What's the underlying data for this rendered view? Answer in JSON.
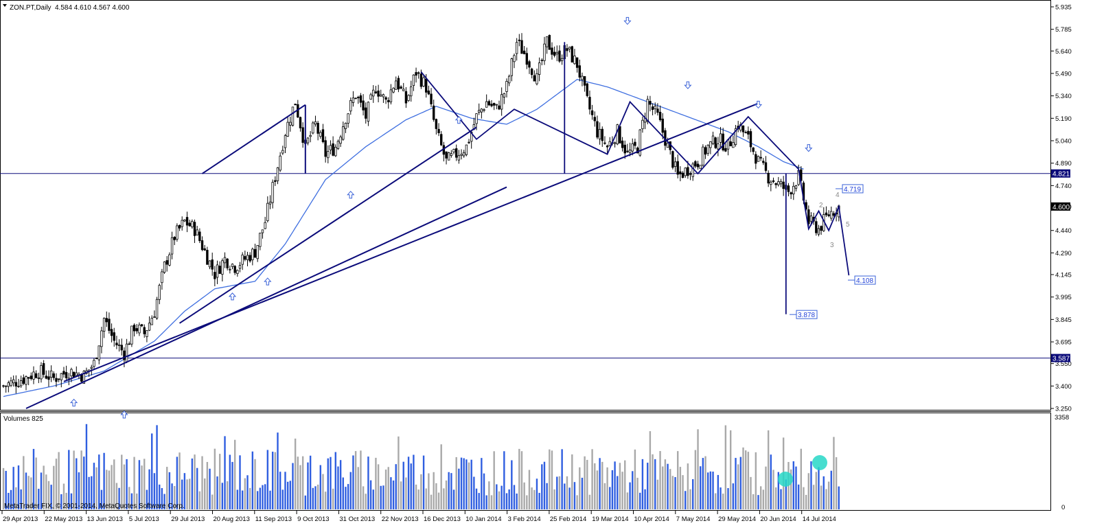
{
  "header": {
    "symbol": "ZON.PT,Daily",
    "ohlc": "4.584 4.610 4.567 4.600"
  },
  "volume_panel": {
    "label": "Volumes 825",
    "max_label": "3358",
    "zero_label": "0"
  },
  "watermark": "MetaTrader FIX, © 2001-2014, MetaQuotes Software Corp.",
  "wave_labels": [
    "1",
    "2",
    "3",
    "4",
    "5"
  ],
  "colors": {
    "candle": "#000000",
    "ma": "#3f6fe0",
    "trend": "#0b0b7a",
    "vol_up": "#2f5ee0",
    "vol_down": "#a9a9a9",
    "arrow": "#3a62d8",
    "highlight": "#27d7c7"
  },
  "chart_data": {
    "type": "candlestick",
    "title": "ZON.PT,Daily",
    "ylim": [
      3.25,
      5.935
    ],
    "y_ticks": [
      5.935,
      5.785,
      5.64,
      5.49,
      5.34,
      5.19,
      5.04,
      4.89,
      4.74,
      4.6,
      4.44,
      4.29,
      4.145,
      3.995,
      3.845,
      3.695,
      3.55,
      3.4,
      3.25
    ],
    "x_tick_labels": [
      "29 Apr 2013",
      "22 May 2013",
      "13 Jun 2013",
      "5 Jul 2013",
      "29 Jul 2013",
      "20 Aug 2013",
      "11 Sep 2013",
      "9 Oct 2013",
      "31 Oct 2013",
      "22 Nov 2013",
      "16 Dec 2013",
      "10 Jan 2014",
      "3 Feb 2014",
      "25 Feb 2014",
      "19 Mar 2014",
      "10 Apr 2014",
      "7 May 2014",
      "29 May 2014",
      "20 Jun 2014",
      "14 Jul 2014"
    ],
    "last_price": 4.6,
    "horizontal_levels": [
      4.821,
      3.587
    ],
    "target_labels": [
      4.719,
      4.108,
      3.878
    ],
    "close_anchors": [
      [
        0,
        3.4
      ],
      [
        8,
        3.45
      ],
      [
        14,
        3.5
      ],
      [
        20,
        3.45
      ],
      [
        26,
        3.5
      ],
      [
        32,
        3.47
      ],
      [
        36,
        3.55
      ],
      [
        40,
        3.85
      ],
      [
        44,
        3.7
      ],
      [
        48,
        3.62
      ],
      [
        52,
        3.8
      ],
      [
        56,
        3.75
      ],
      [
        60,
        3.9
      ],
      [
        64,
        4.2
      ],
      [
        68,
        4.4
      ],
      [
        72,
        4.5
      ],
      [
        76,
        4.45
      ],
      [
        80,
        4.3
      ],
      [
        84,
        4.15
      ],
      [
        88,
        4.25
      ],
      [
        92,
        4.2
      ],
      [
        96,
        4.25
      ],
      [
        100,
        4.3
      ],
      [
        104,
        4.5
      ],
      [
        108,
        4.8
      ],
      [
        112,
        5.1
      ],
      [
        116,
        5.3
      ],
      [
        120,
        5.0
      ],
      [
        124,
        5.15
      ],
      [
        128,
        4.95
      ],
      [
        132,
        5.0
      ],
      [
        136,
        5.2
      ],
      [
        140,
        5.35
      ],
      [
        144,
        5.2
      ],
      [
        148,
        5.4
      ],
      [
        152,
        5.3
      ],
      [
        156,
        5.45
      ],
      [
        160,
        5.3
      ],
      [
        164,
        5.5
      ],
      [
        168,
        5.4
      ],
      [
        172,
        5.1
      ],
      [
        176,
        4.9
      ],
      [
        180,
        4.95
      ],
      [
        184,
        5.0
      ],
      [
        188,
        5.2
      ],
      [
        192,
        5.3
      ],
      [
        196,
        5.25
      ],
      [
        200,
        5.4
      ],
      [
        204,
        5.7
      ],
      [
        208,
        5.6
      ],
      [
        212,
        5.45
      ],
      [
        216,
        5.7
      ],
      [
        220,
        5.6
      ],
      [
        224,
        5.65
      ],
      [
        228,
        5.55
      ],
      [
        232,
        5.3
      ],
      [
        236,
        5.1
      ],
      [
        240,
        5.0
      ],
      [
        244,
        5.1
      ],
      [
        248,
        4.95
      ],
      [
        252,
        5.0
      ],
      [
        256,
        5.3
      ],
      [
        260,
        5.2
      ],
      [
        264,
        5.0
      ],
      [
        268,
        4.8
      ],
      [
        272,
        4.85
      ],
      [
        276,
        4.9
      ],
      [
        280,
        5.0
      ],
      [
        284,
        5.05
      ],
      [
        288,
        5.0
      ],
      [
        292,
        5.15
      ],
      [
        296,
        5.05
      ],
      [
        300,
        4.9
      ],
      [
        304,
        4.8
      ],
      [
        308,
        4.75
      ],
      [
        312,
        4.7
      ],
      [
        316,
        4.8
      ],
      [
        320,
        4.5
      ],
      [
        324,
        4.45
      ],
      [
        328,
        4.55
      ],
      [
        332,
        4.6
      ]
    ],
    "ma_anchors": [
      [
        0,
        3.33
      ],
      [
        20,
        3.4
      ],
      [
        40,
        3.5
      ],
      [
        60,
        3.7
      ],
      [
        72,
        3.9
      ],
      [
        84,
        4.05
      ],
      [
        100,
        4.1
      ],
      [
        112,
        4.35
      ],
      [
        128,
        4.78
      ],
      [
        144,
        5.0
      ],
      [
        160,
        5.18
      ],
      [
        172,
        5.27
      ],
      [
        186,
        5.19
      ],
      [
        200,
        5.15
      ],
      [
        212,
        5.25
      ],
      [
        228,
        5.45
      ],
      [
        240,
        5.4
      ],
      [
        256,
        5.3
      ],
      [
        272,
        5.2
      ],
      [
        288,
        5.1
      ],
      [
        300,
        5.0
      ],
      [
        310,
        4.9
      ],
      [
        318,
        4.85
      ]
    ],
    "trend_lines": [
      [
        [
          9,
          3.25
        ],
        [
          200,
          4.73
        ]
      ],
      [
        [
          24,
          3.43
        ],
        [
          300,
          5.29
        ]
      ],
      [
        [
          188,
          5.13
        ],
        [
          70,
          3.82
        ]
      ],
      [
        [
          79,
          4.82
        ],
        [
          120,
          5.28
        ]
      ],
      [
        [
          120,
          5.28
        ],
        [
          120,
          4.82
        ]
      ]
    ],
    "volume": {
      "ylim": [
        0,
        3358
      ]
    }
  }
}
